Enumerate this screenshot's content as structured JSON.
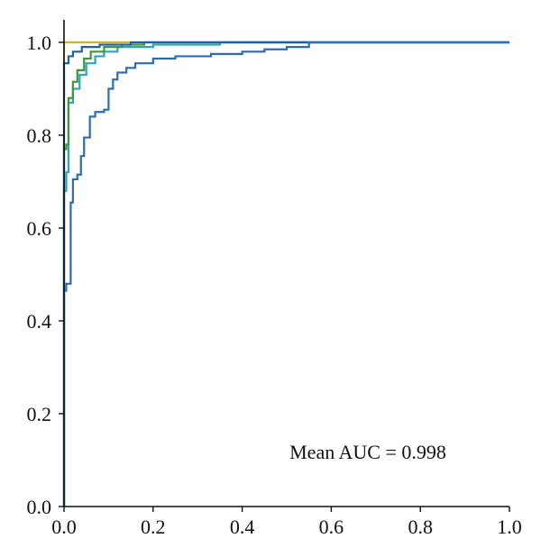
{
  "chart_data": {
    "type": "line",
    "title": "",
    "xlabel": "",
    "ylabel": "",
    "xlim": [
      0,
      1
    ],
    "ylim": [
      0,
      1
    ],
    "x_ticks": [
      "0.0",
      "0.2",
      "0.4",
      "0.6",
      "0.8",
      "1.0"
    ],
    "y_ticks": [
      "0.0",
      "0.2",
      "0.4",
      "0.6",
      "0.8",
      "1.0"
    ],
    "grid": false,
    "legend": "none",
    "annotation": "Mean AUC = 0.998",
    "series": [
      {
        "color": "#c8b440",
        "points": [
          [
            0,
            0
          ],
          [
            0,
            1.0
          ],
          [
            0.4,
            1.0
          ],
          [
            1.0,
            1.0
          ]
        ]
      },
      {
        "color": "#2ea3c0",
        "points": [
          [
            0,
            0
          ],
          [
            0,
            0.68
          ],
          [
            0.005,
            0.68
          ],
          [
            0.005,
            0.72
          ],
          [
            0.01,
            0.72
          ],
          [
            0.01,
            0.87
          ],
          [
            0.02,
            0.87
          ],
          [
            0.02,
            0.9
          ],
          [
            0.035,
            0.9
          ],
          [
            0.035,
            0.93
          ],
          [
            0.05,
            0.93
          ],
          [
            0.05,
            0.955
          ],
          [
            0.07,
            0.955
          ],
          [
            0.07,
            0.97
          ],
          [
            0.09,
            0.97
          ],
          [
            0.09,
            0.98
          ],
          [
            0.12,
            0.98
          ],
          [
            0.12,
            0.99
          ],
          [
            0.2,
            0.99
          ],
          [
            0.2,
            0.995
          ],
          [
            0.35,
            0.995
          ],
          [
            0.35,
            1.0
          ],
          [
            1.0,
            1.0
          ]
        ]
      },
      {
        "color": "#3a9a3a",
        "points": [
          [
            0,
            0
          ],
          [
            0,
            0.77
          ],
          [
            0.005,
            0.77
          ],
          [
            0.005,
            0.78
          ],
          [
            0.01,
            0.78
          ],
          [
            0.01,
            0.88
          ],
          [
            0.02,
            0.88
          ],
          [
            0.02,
            0.915
          ],
          [
            0.03,
            0.915
          ],
          [
            0.03,
            0.94
          ],
          [
            0.045,
            0.94
          ],
          [
            0.045,
            0.965
          ],
          [
            0.06,
            0.965
          ],
          [
            0.06,
            0.98
          ],
          [
            0.09,
            0.98
          ],
          [
            0.09,
            0.99
          ],
          [
            0.13,
            0.99
          ],
          [
            0.13,
            0.995
          ],
          [
            0.18,
            0.995
          ],
          [
            0.18,
            1.0
          ],
          [
            1.0,
            1.0
          ]
        ]
      },
      {
        "color": "#1f5fa8",
        "points": [
          [
            0,
            0
          ],
          [
            0,
            0.955
          ],
          [
            0.01,
            0.955
          ],
          [
            0.01,
            0.97
          ],
          [
            0.02,
            0.97
          ],
          [
            0.02,
            0.98
          ],
          [
            0.04,
            0.98
          ],
          [
            0.04,
            0.99
          ],
          [
            0.08,
            0.99
          ],
          [
            0.08,
            0.995
          ],
          [
            0.15,
            0.995
          ],
          [
            0.15,
            1.0
          ],
          [
            1.0,
            1.0
          ]
        ]
      },
      {
        "color": "#2a6db5",
        "points": [
          [
            0,
            0
          ],
          [
            0,
            0.465
          ],
          [
            0.005,
            0.465
          ],
          [
            0.005,
            0.48
          ],
          [
            0.015,
            0.48
          ],
          [
            0.015,
            0.655
          ],
          [
            0.02,
            0.655
          ],
          [
            0.02,
            0.705
          ],
          [
            0.03,
            0.705
          ],
          [
            0.03,
            0.715
          ],
          [
            0.038,
            0.715
          ],
          [
            0.038,
            0.755
          ],
          [
            0.045,
            0.755
          ],
          [
            0.045,
            0.795
          ],
          [
            0.058,
            0.795
          ],
          [
            0.058,
            0.84
          ],
          [
            0.07,
            0.84
          ],
          [
            0.07,
            0.85
          ],
          [
            0.09,
            0.85
          ],
          [
            0.09,
            0.855
          ],
          [
            0.1,
            0.855
          ],
          [
            0.1,
            0.9
          ],
          [
            0.11,
            0.9
          ],
          [
            0.11,
            0.92
          ],
          [
            0.12,
            0.92
          ],
          [
            0.12,
            0.935
          ],
          [
            0.14,
            0.935
          ],
          [
            0.14,
            0.945
          ],
          [
            0.16,
            0.945
          ],
          [
            0.16,
            0.955
          ],
          [
            0.2,
            0.955
          ],
          [
            0.2,
            0.965
          ],
          [
            0.25,
            0.965
          ],
          [
            0.25,
            0.97
          ],
          [
            0.33,
            0.97
          ],
          [
            0.33,
            0.975
          ],
          [
            0.4,
            0.975
          ],
          [
            0.4,
            0.98
          ],
          [
            0.45,
            0.98
          ],
          [
            0.45,
            0.985
          ],
          [
            0.5,
            0.985
          ],
          [
            0.5,
            0.99
          ],
          [
            0.55,
            0.99
          ],
          [
            0.55,
            1.0
          ],
          [
            1.0,
            1.0
          ]
        ]
      }
    ]
  }
}
